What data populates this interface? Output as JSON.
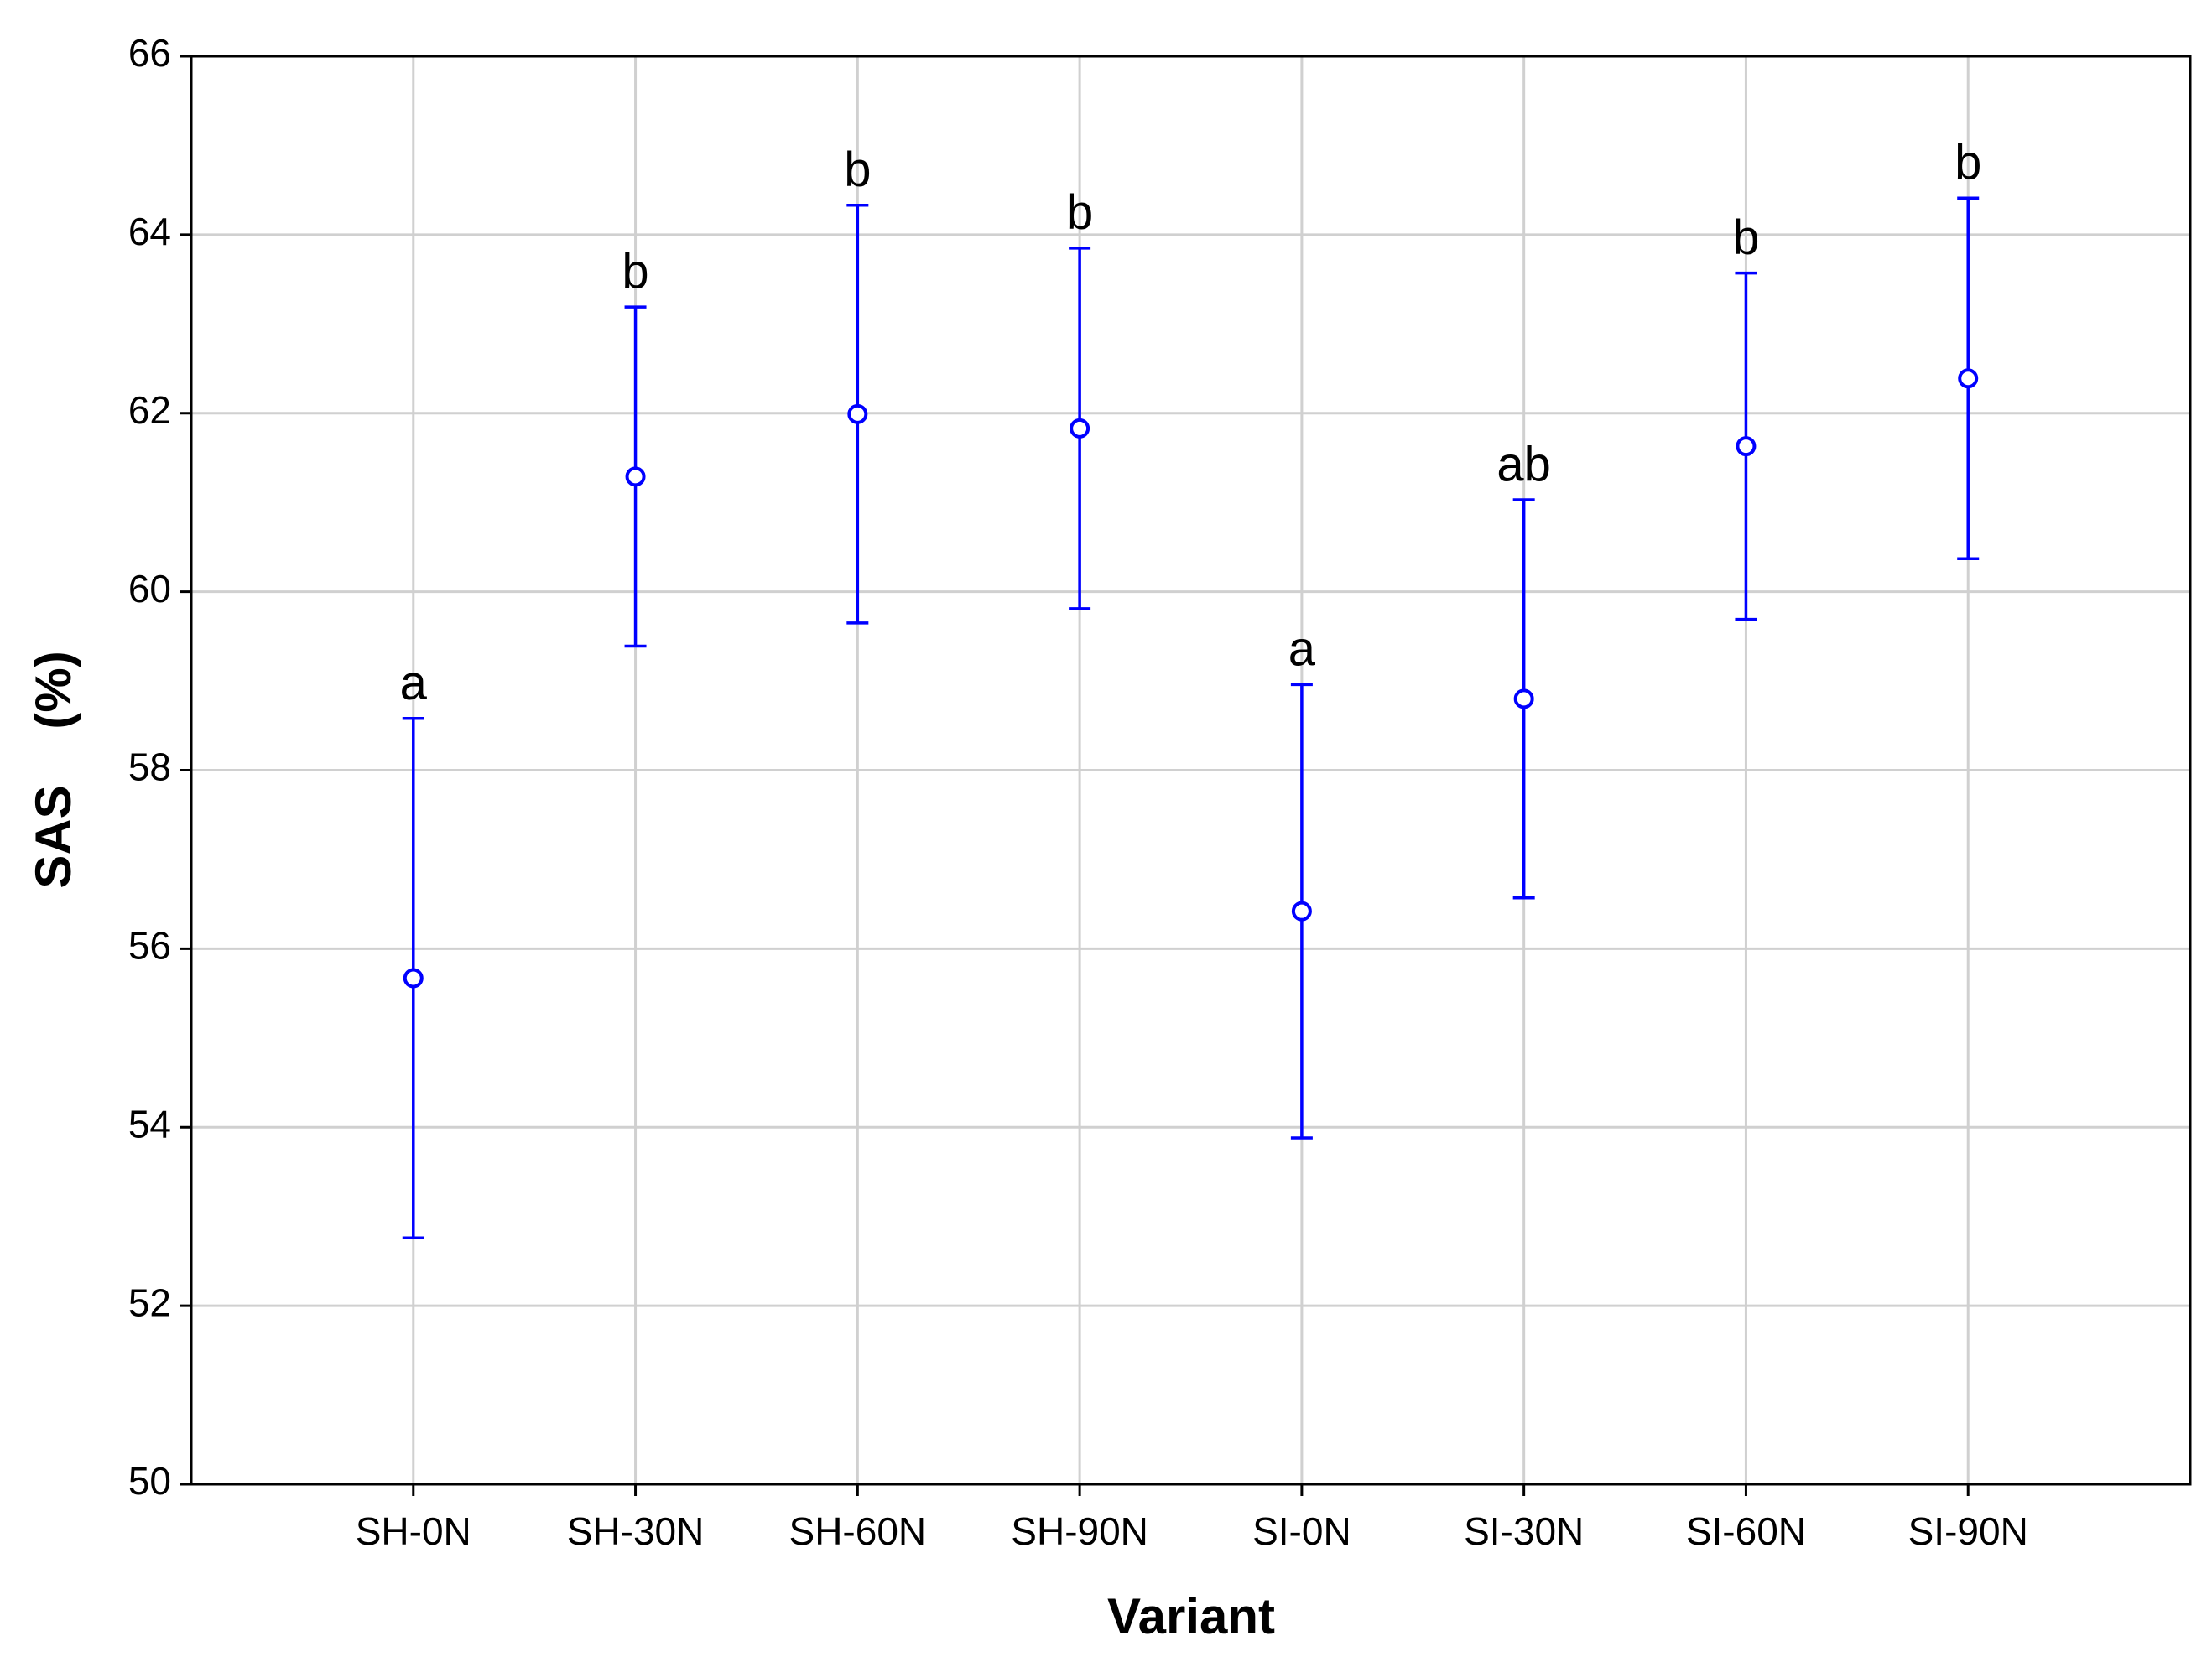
{
  "chart_data": {
    "type": "errorbar",
    "x_label": "Variant",
    "y_label": "SAS    (%)",
    "categories": [
      "SH-0N",
      "SH-30N",
      "SH-60N",
      "SH-90N",
      "SI-0N",
      "SI-30N",
      "SI-60N",
      "SI-90N"
    ],
    "values": [
      55.67,
      61.29,
      61.99,
      61.83,
      56.42,
      58.8,
      61.63,
      62.39
    ],
    "errors": [
      2.91,
      1.9,
      2.34,
      2.02,
      2.54,
      2.23,
      1.94,
      2.02
    ],
    "annotations": [
      "a",
      "b",
      "b",
      "b",
      "a",
      "ab",
      "b",
      "b"
    ],
    "color": "#0000ff",
    "ylim": [
      50,
      66
    ],
    "yticks": [
      50,
      52,
      54,
      56,
      58,
      60,
      62,
      64,
      66
    ],
    "grid": true
  }
}
